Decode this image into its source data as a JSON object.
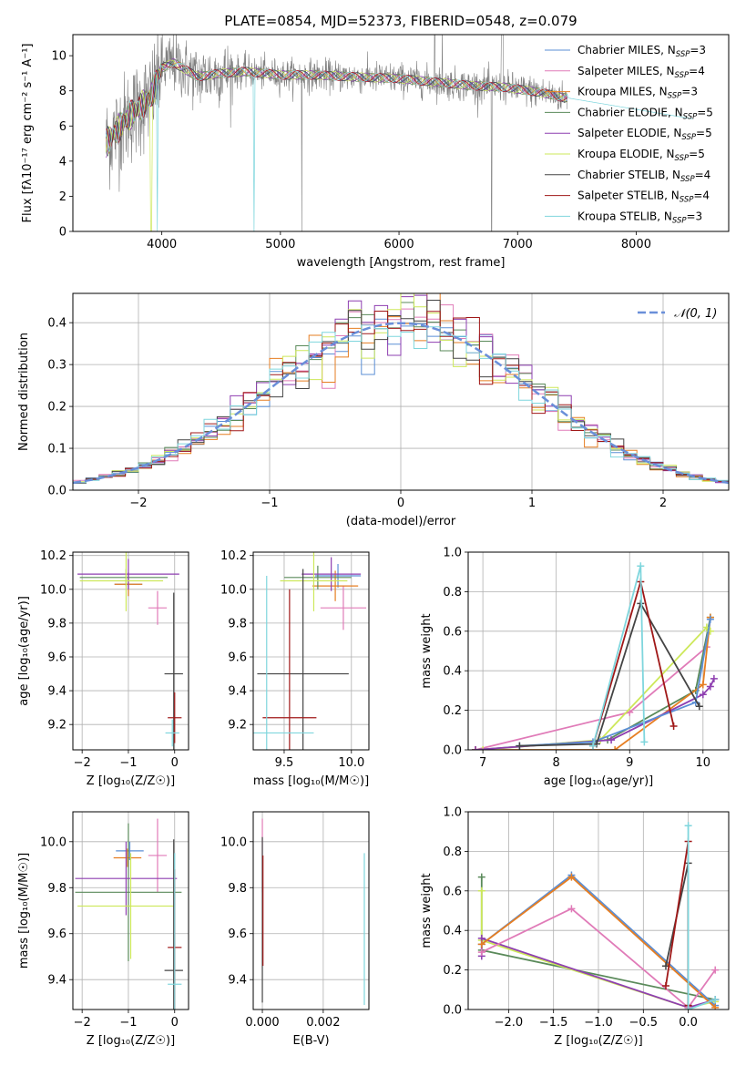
{
  "title": "PLATE=0854, MJD=52373, FIBERID=0548, z=0.079",
  "colors": {
    "chabrier_miles": "#5b8fd6",
    "salpeter_miles": "#e07bb8",
    "kroupa_miles": "#e67e22",
    "chabrier_elodie": "#5a8a5a",
    "salpeter_elodie": "#8e3fb0",
    "kroupa_elodie": "#cde85a",
    "chabrier_stelib": "#444444",
    "salpeter_stelib": "#a01818",
    "kroupa_stelib": "#7fd6dd",
    "data": "#808080",
    "normal": "#6a8fd9"
  },
  "chart_data": [
    {
      "type": "line",
      "name": "spectrum",
      "xlabel": "wavelength [Angstrom, rest frame]",
      "ylabel": "Flux [fλ10⁻¹⁷ erg cm⁻² s⁻¹ A⁻¹]",
      "xlim": [
        3250,
        8780
      ],
      "ylim": [
        0,
        11.2
      ],
      "xticks": [
        4000,
        5000,
        6000,
        7000,
        8000
      ],
      "yticks": [
        0,
        2,
        4,
        6,
        8,
        10
      ],
      "legend_position": "top-right",
      "legend": [
        {
          "label": "Chabrier MILES, N",
          "sub": "SSP",
          "suffix": "=3",
          "color_key": "chabrier_miles"
        },
        {
          "label": "Salpeter MILES, N",
          "sub": "SSP",
          "suffix": "=4",
          "color_key": "salpeter_miles"
        },
        {
          "label": "Kroupa MILES, N",
          "sub": "SSP",
          "suffix": "=3",
          "color_key": "kroupa_miles"
        },
        {
          "label": "Chabrier ELODIE, N",
          "sub": "SSP",
          "suffix": "=5",
          "color_key": "chabrier_elodie"
        },
        {
          "label": "Salpeter ELODIE, N",
          "sub": "SSP",
          "suffix": "=5",
          "color_key": "salpeter_elodie"
        },
        {
          "label": "Kroupa ELODIE, N",
          "sub": "SSP",
          "suffix": "=5",
          "color_key": "kroupa_elodie"
        },
        {
          "label": "Chabrier STELIB, N",
          "sub": "SSP",
          "suffix": "=4",
          "color_key": "chabrier_stelib"
        },
        {
          "label": "Salpeter STELIB, N",
          "sub": "SSP",
          "suffix": "=4",
          "color_key": "salpeter_stelib"
        },
        {
          "label": "Kroupa STELIB, N",
          "sub": "SSP",
          "suffix": "=3",
          "color_key": "kroupa_stelib"
        }
      ],
      "continuum": {
        "wavelength": [
          3530,
          3600,
          3700,
          3800,
          3900,
          3950,
          4000,
          4100,
          4200,
          4300,
          4500,
          4700,
          5000,
          5300,
          5600,
          6000,
          6300,
          6600,
          6900,
          7200,
          7400
        ],
        "flux": [
          5.0,
          5.6,
          6.4,
          7.0,
          7.6,
          8.4,
          9.3,
          9.6,
          9.2,
          8.8,
          9.0,
          9.1,
          8.9,
          8.9,
          8.8,
          8.7,
          8.5,
          8.3,
          8.2,
          7.9,
          7.6
        ]
      },
      "data_range": [
        3530,
        7420
      ],
      "kroupa_stelib_range": [
        3530,
        8480
      ]
    },
    {
      "type": "histogram",
      "name": "residuals",
      "xlabel": "(data-model)/error",
      "ylabel": "Normed distribution",
      "xlim": [
        -2.5,
        2.5
      ],
      "ylim": [
        0,
        0.47
      ],
      "xticks": [
        -2,
        -1,
        0,
        1,
        2
      ],
      "yticks": [
        0.0,
        0.1,
        0.2,
        0.3,
        0.4
      ],
      "legend": "𝒩(0, 1)",
      "legend_position": "top-right",
      "bin_width": 0.1
    },
    {
      "type": "scatter",
      "name": "age-vs-Z",
      "xlabel": "Z [log₁₀(Z/Z☉)]",
      "ylabel": "age  [log₁₀(age/yr)]",
      "xlim": [
        -2.2,
        0.3
      ],
      "ylim": [
        9.05,
        10.22
      ],
      "xticks": [
        -2,
        -1,
        0
      ],
      "yticks": [
        9.2,
        9.4,
        9.6,
        9.8,
        10.0,
        10.2
      ],
      "points": [
        {
          "color_key": "chabrier_miles",
          "x": -1.0,
          "y": 10.03,
          "xerr": [
            0.3,
            0.3
          ],
          "yerr": [
            0.07,
            0.07
          ]
        },
        {
          "color_key": "salpeter_miles",
          "x": -0.37,
          "y": 9.89,
          "xerr": [
            0.2,
            0.2
          ],
          "yerr": [
            0.1,
            0.1
          ]
        },
        {
          "color_key": "kroupa_miles",
          "x": -1.0,
          "y": 10.03,
          "xerr": [
            0.3,
            0.3
          ],
          "yerr": [
            0.07,
            0.07
          ]
        },
        {
          "color_key": "chabrier_elodie",
          "x": -1.05,
          "y": 10.07,
          "xerr": [
            1.0,
            0.9
          ],
          "yerr": [
            0.05,
            0.05
          ]
        },
        {
          "color_key": "salpeter_elodie",
          "x": -1.0,
          "y": 10.09,
          "xerr": [
            1.1,
            1.1
          ],
          "yerr": [
            0.09,
            0.09
          ]
        },
        {
          "color_key": "kroupa_elodie",
          "x": -1.05,
          "y": 10.05,
          "xerr": [
            1.0,
            0.8
          ],
          "yerr": [
            0.18,
            0.18
          ]
        },
        {
          "color_key": "chabrier_stelib",
          "x": -0.02,
          "y": 9.5,
          "xerr": [
            0.2,
            0.2
          ],
          "yerr": [
            0.48,
            0.48
          ]
        },
        {
          "color_key": "salpeter_stelib",
          "x": 0.0,
          "y": 9.24,
          "xerr": [
            0.15,
            0.15
          ],
          "yerr": [
            0.15,
            0.15
          ]
        },
        {
          "color_key": "kroupa_stelib",
          "x": -0.05,
          "y": 9.15,
          "xerr": [
            0.15,
            0.15
          ],
          "yerr": [
            0.08,
            0.08
          ]
        }
      ]
    },
    {
      "type": "scatter",
      "name": "age-vs-mass",
      "xlabel": "mass [log₁₀(M/M☉)]",
      "ylabel": "",
      "xlim": [
        9.27,
        10.13
      ],
      "ylim": [
        9.05,
        10.22
      ],
      "xticks": [
        9.5,
        10.0
      ],
      "yticks": [
        9.2,
        9.4,
        9.6,
        9.8,
        10.0,
        10.2
      ],
      "points": [
        {
          "color_key": "chabrier_miles",
          "x": 9.9,
          "y": 10.08,
          "xerr": [
            0.17,
            0.17
          ],
          "yerr": [
            0.07,
            0.07
          ]
        },
        {
          "color_key": "salpeter_miles",
          "x": 9.94,
          "y": 9.89,
          "xerr": [
            0.17,
            0.17
          ],
          "yerr": [
            0.13,
            0.13
          ]
        },
        {
          "color_key": "kroupa_miles",
          "x": 9.88,
          "y": 10.02,
          "xerr": [
            0.17,
            0.17
          ],
          "yerr": [
            0.09,
            0.09
          ]
        },
        {
          "color_key": "chabrier_elodie",
          "x": 9.75,
          "y": 10.07,
          "xerr": [
            0.25,
            0.25
          ],
          "yerr": [
            0.07,
            0.07
          ]
        },
        {
          "color_key": "salpeter_elodie",
          "x": 9.85,
          "y": 10.09,
          "xerr": [
            0.22,
            0.22
          ],
          "yerr": [
            0.1,
            0.1
          ]
        },
        {
          "color_key": "kroupa_elodie",
          "x": 9.72,
          "y": 10.05,
          "xerr": [
            0.25,
            0.25
          ],
          "yerr": [
            0.18,
            0.18
          ]
        },
        {
          "color_key": "chabrier_stelib",
          "x": 9.64,
          "y": 9.5,
          "xerr": [
            0.34,
            0.34
          ],
          "yerr": [
            0.62,
            0.62
          ]
        },
        {
          "color_key": "salpeter_stelib",
          "x": 9.54,
          "y": 9.24,
          "xerr": [
            0.2,
            0.2
          ],
          "yerr": [
            0.76,
            0.76
          ]
        },
        {
          "color_key": "kroupa_stelib",
          "x": 9.37,
          "y": 9.15,
          "xerr": [
            0.35,
            0.35
          ],
          "yerr": [
            0.93,
            0.93
          ]
        }
      ]
    },
    {
      "type": "line",
      "name": "mass-weight-vs-age",
      "xlabel": "age  [log₁₀(age/yr)]",
      "ylabel": "mass weight",
      "xlim": [
        6.8,
        10.35
      ],
      "ylim": [
        0,
        1.0
      ],
      "xticks": [
        7,
        8,
        9,
        10
      ],
      "yticks": [
        0.0,
        0.2,
        0.4,
        0.6,
        0.8,
        1.0
      ],
      "series": [
        {
          "color_key": "salpeter_miles",
          "x": [
            6.9,
            9.0,
            10.05
          ],
          "y": [
            0.0,
            0.19,
            0.52
          ]
        },
        {
          "color_key": "chabrier_elodie",
          "x": [
            6.9,
            8.7,
            9.9,
            10.1
          ],
          "y": [
            0.0,
            0.05,
            0.3,
            0.67
          ]
        },
        {
          "color_key": "kroupa_miles",
          "x": [
            6.9,
            8.8,
            10.0,
            10.1
          ],
          "y": [
            0.0,
            0.0,
            0.33,
            0.67
          ]
        },
        {
          "color_key": "kroupa_elodie",
          "x": [
            7.0,
            8.6,
            10.05,
            10.1
          ],
          "y": [
            0.0,
            0.05,
            0.62,
            0.6
          ]
        },
        {
          "color_key": "salpeter_elodie",
          "x": [
            6.9,
            8.75,
            10.0,
            10.1,
            10.15
          ],
          "y": [
            0.0,
            0.05,
            0.28,
            0.32,
            0.36
          ]
        },
        {
          "color_key": "chabrier_miles",
          "x": [
            7.5,
            8.5,
            9.9,
            10.1
          ],
          "y": [
            0.02,
            0.04,
            0.24,
            0.66
          ]
        },
        {
          "color_key": "chabrier_stelib",
          "x": [
            7.5,
            8.55,
            9.15,
            9.95
          ],
          "y": [
            0.02,
            0.03,
            0.74,
            0.22
          ]
        },
        {
          "color_key": "salpeter_stelib",
          "x": [
            8.5,
            9.15,
            9.6
          ],
          "y": [
            0.02,
            0.85,
            0.12
          ]
        },
        {
          "color_key": "kroupa_stelib",
          "x": [
            8.5,
            9.15,
            9.2
          ],
          "y": [
            0.02,
            0.93,
            0.04
          ]
        }
      ]
    },
    {
      "type": "scatter",
      "name": "mass-vs-Z",
      "xlabel": "Z [log₁₀(Z/Z☉)]",
      "ylabel": "mass [log₁₀(M/M☉)]",
      "xlim": [
        -2.2,
        0.3
      ],
      "ylim": [
        9.27,
        10.13
      ],
      "xticks": [
        -2,
        -1,
        0
      ],
      "yticks": [
        9.4,
        9.6,
        9.8,
        10.0
      ],
      "points": [
        {
          "color_key": "chabrier_miles",
          "x": -0.97,
          "y": 9.96,
          "xerr": [
            0.3,
            0.3
          ],
          "yerr": [
            0.04,
            0.04
          ]
        },
        {
          "color_key": "salpeter_miles",
          "x": -0.37,
          "y": 9.94,
          "xerr": [
            0.2,
            0.2
          ],
          "yerr": [
            0.16,
            0.16
          ]
        },
        {
          "color_key": "kroupa_miles",
          "x": -1.02,
          "y": 9.93,
          "xerr": [
            0.3,
            0.3
          ],
          "yerr": [
            0.04,
            0.04
          ]
        },
        {
          "color_key": "chabrier_elodie",
          "x": -1.0,
          "y": 9.78,
          "xerr": [
            1.15,
            1.15
          ],
          "yerr": [
            0.3,
            0.3
          ]
        },
        {
          "color_key": "salpeter_elodie",
          "x": -1.05,
          "y": 9.84,
          "xerr": [
            1.1,
            1.1
          ],
          "yerr": [
            0.16,
            0.16
          ]
        },
        {
          "color_key": "kroupa_elodie",
          "x": -0.95,
          "y": 9.72,
          "xerr": [
            1.15,
            0.95
          ],
          "yerr": [
            0.23,
            0.23
          ]
        },
        {
          "color_key": "chabrier_stelib",
          "x": -0.02,
          "y": 9.44,
          "xerr": [
            0.2,
            0.2
          ],
          "yerr": [
            0.57,
            0.57
          ]
        },
        {
          "color_key": "salpeter_stelib",
          "x": 0.0,
          "y": 9.54,
          "xerr": [
            0.15,
            0.15
          ],
          "yerr": [
            0.34,
            0.34
          ]
        },
        {
          "color_key": "kroupa_stelib",
          "x": 0.0,
          "y": 9.38,
          "xerr": [
            0.15,
            0.15
          ],
          "yerr": [
            0.57,
            0.57
          ]
        }
      ]
    },
    {
      "type": "scatter",
      "name": "mass-vs-ebv",
      "xlabel": "E(B-V)",
      "ylabel": "",
      "xlim": [
        -0.0003,
        0.0035
      ],
      "ylim": [
        9.27,
        10.13
      ],
      "xticks": [
        0.0,
        0.002
      ],
      "xtick_labels": [
        "0.000",
        "0.002"
      ],
      "yticks": [
        9.4,
        9.6,
        9.8,
        10.0
      ],
      "points": [
        {
          "color_key": "salpeter_miles",
          "x": 0.0,
          "y": 9.94,
          "yerr": [
            0.16,
            0.16
          ]
        },
        {
          "color_key": "chabrier_stelib",
          "x": 0.0,
          "y": 9.66,
          "yerr": [
            0.36,
            0.36
          ]
        },
        {
          "color_key": "salpeter_stelib",
          "x": 2e-05,
          "y": 9.7,
          "yerr": [
            0.24,
            0.24
          ]
        },
        {
          "color_key": "kroupa_stelib",
          "x": 0.00335,
          "y": 9.62,
          "yerr": [
            0.33,
            0.33
          ]
        }
      ]
    },
    {
      "type": "line",
      "name": "mass-weight-vs-Z",
      "xlabel": "Z [log₁₀(Z/Z☉)]",
      "ylabel": "mass weight",
      "xlim": [
        -2.45,
        0.45
      ],
      "ylim": [
        0,
        1.0
      ],
      "xticks": [
        -2.0,
        -1.5,
        -1.0,
        -0.5,
        0.0
      ],
      "xtick_labels": [
        "−2.0",
        "−1.5",
        "−1.0",
        "−0.5",
        "0.0"
      ],
      "yticks": [
        0.0,
        0.2,
        0.4,
        0.6,
        0.8,
        1.0
      ],
      "series": [
        {
          "color_key": "chabrier_elodie",
          "x": [
            -2.3,
            -2.3,
            0.3
          ],
          "y": [
            0.67,
            0.3,
            0.05
          ]
        },
        {
          "color_key": "kroupa_elodie",
          "x": [
            -2.3,
            -2.3,
            0.0,
            0.3
          ],
          "y": [
            0.6,
            0.35,
            0.01,
            0.04
          ]
        },
        {
          "color_key": "salpeter_elodie",
          "x": [
            -2.3,
            -2.3,
            0.0,
            0.3
          ],
          "y": [
            0.27,
            0.36,
            0.01,
            0.05
          ]
        },
        {
          "color_key": "chabrier_miles",
          "x": [
            -2.3,
            -1.3,
            0.3
          ],
          "y": [
            0.33,
            0.68,
            0.02
          ]
        },
        {
          "color_key": "kroupa_miles",
          "x": [
            -2.3,
            -1.3,
            0.3
          ],
          "y": [
            0.33,
            0.67,
            0.01
          ]
        },
        {
          "color_key": "salpeter_miles",
          "x": [
            -2.3,
            -1.3,
            0.0,
            0.3
          ],
          "y": [
            0.29,
            0.51,
            0.01,
            0.2
          ]
        },
        {
          "color_key": "chabrier_stelib",
          "x": [
            -0.25,
            0.0,
            0.0
          ],
          "y": [
            0.22,
            0.74,
            0.02
          ]
        },
        {
          "color_key": "salpeter_stelib",
          "x": [
            -0.25,
            0.0,
            0.0
          ],
          "y": [
            0.12,
            0.85,
            0.02
          ]
        },
        {
          "color_key": "kroupa_stelib",
          "x": [
            0.0,
            0.0,
            0.3
          ],
          "y": [
            0.93,
            0.0,
            0.05
          ]
        }
      ]
    }
  ]
}
